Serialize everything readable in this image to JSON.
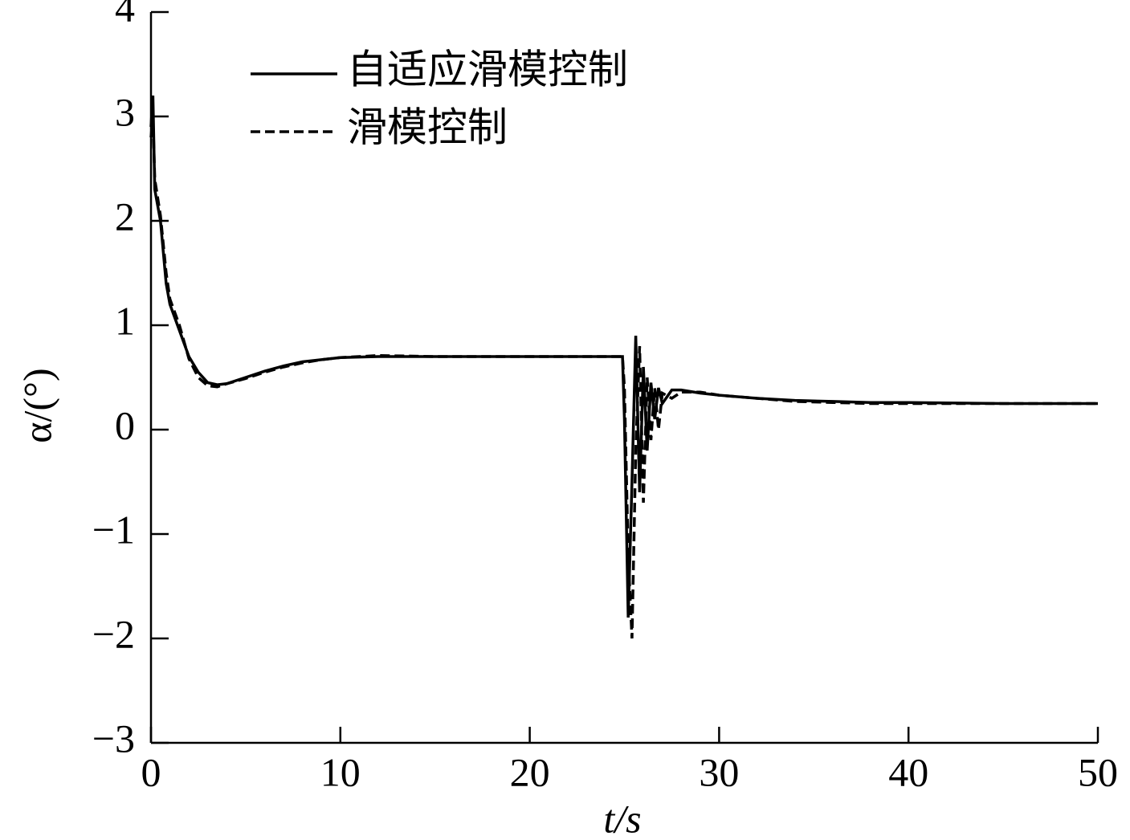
{
  "chart_data": {
    "type": "line",
    "xlabel": "t/s",
    "ylabel": "α/(°)",
    "x": [
      0,
      0.1,
      0.2,
      0.5,
      0.8,
      1,
      1.5,
      2,
      2.5,
      3,
      3.5,
      4,
      5,
      6,
      7,
      8,
      9,
      10,
      12,
      15,
      20,
      24.9,
      25,
      25.2,
      25.4,
      25.6,
      25.8,
      26,
      26.2,
      26.4,
      26.6,
      26.8,
      27,
      27.5,
      28,
      29,
      30,
      32,
      34,
      36,
      38,
      40,
      45,
      50
    ],
    "series": [
      {
        "name": "自适应滑模控制",
        "color": "#000000",
        "dash": "solid",
        "values": [
          2.9,
          3.2,
          2.3,
          2.0,
          1.4,
          1.2,
          0.95,
          0.7,
          0.55,
          0.45,
          0.43,
          0.44,
          0.5,
          0.56,
          0.61,
          0.65,
          0.67,
          0.69,
          0.7,
          0.7,
          0.7,
          0.7,
          0.1,
          -1.8,
          -0.5,
          0.9,
          -0.6,
          0.6,
          -0.2,
          0.45,
          0.1,
          0.4,
          0.25,
          0.38,
          0.38,
          0.35,
          0.33,
          0.3,
          0.28,
          0.27,
          0.26,
          0.26,
          0.25,
          0.25
        ]
      },
      {
        "name": "滑模控制",
        "color": "#000000",
        "dash": "dashed",
        "values": [
          2.8,
          3.0,
          2.4,
          2.05,
          1.5,
          1.25,
          1.0,
          0.68,
          0.5,
          0.42,
          0.41,
          0.44,
          0.49,
          0.55,
          0.6,
          0.64,
          0.67,
          0.69,
          0.71,
          0.7,
          0.7,
          0.7,
          0.4,
          -1.2,
          -2.0,
          -0.2,
          0.8,
          -0.7,
          0.5,
          -0.1,
          0.4,
          0.0,
          0.35,
          0.3,
          0.36,
          0.36,
          0.33,
          0.3,
          0.27,
          0.26,
          0.25,
          0.25,
          0.25,
          0.25
        ]
      }
    ],
    "xlim": [
      0,
      50
    ],
    "xticks": [
      0,
      10,
      20,
      30,
      40,
      50
    ],
    "ylim": [
      -3,
      4
    ],
    "yticks": [
      {
        "value": -3,
        "label": "−3"
      },
      {
        "value": -2,
        "label": "−2"
      },
      {
        "value": -1,
        "label": "−1"
      },
      0,
      1,
      2,
      3,
      4
    ],
    "legend": "upper left",
    "grid": false
  }
}
